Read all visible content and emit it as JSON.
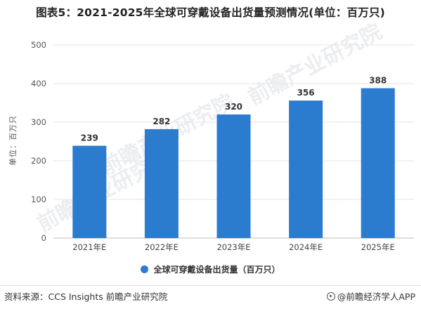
{
  "title": "图表5：2021-2025年全球可穿戴设备出货量预测情况(单位：百万只)",
  "source": "资料来源：CCS Insights 前瞻产业研究院",
  "brand": "@前瞻经济学人APP",
  "watermark": "前瞻产业研究院",
  "chart_data": {
    "type": "bar",
    "categories": [
      "2021年E",
      "2022年E",
      "2023年E",
      "2024年E",
      "2025年E"
    ],
    "series": [
      {
        "name": "全球可穿戴设备出货量（百万只）",
        "values": [
          239,
          282,
          320,
          356,
          388
        ],
        "color": "#2b7bcf"
      }
    ],
    "ylabel": "单位：百万只",
    "ylim": [
      0,
      500
    ],
    "yticks": [
      0,
      100,
      200,
      300,
      400,
      500
    ],
    "grid": true,
    "legend_position": "bottom",
    "data_labels": true
  }
}
